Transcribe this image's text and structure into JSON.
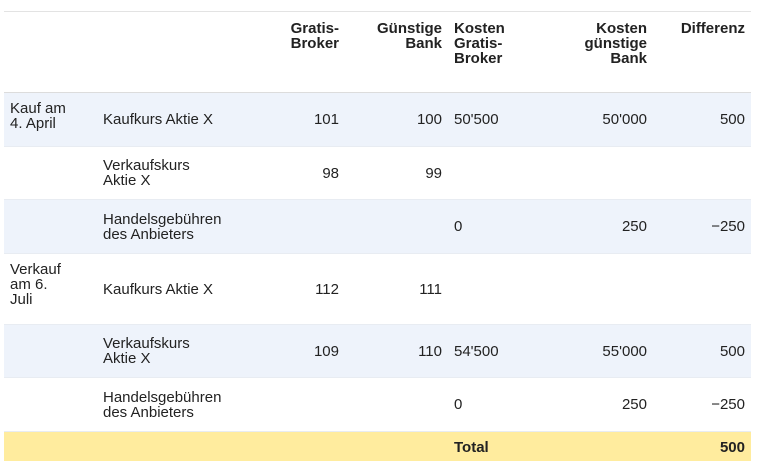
{
  "table": {
    "headers": [
      "",
      "",
      "Gratis-\nBroker",
      "Günstige\nBank",
      "Kosten\nGratis-\nBroker",
      "Kosten\ngünstige\nBank",
      "Differenz"
    ],
    "rows": [
      [
        "Kauf am\n4. April",
        "Kaufkurs Aktie X",
        "101",
        "100",
        "50'500",
        "50'000",
        "500"
      ],
      [
        "",
        "Verkaufskurs\nAktie X",
        "98",
        "99",
        "",
        "",
        ""
      ],
      [
        "",
        "Handelsgebühren\ndes Anbieters",
        "",
        "",
        "0",
        "250",
        "−250"
      ],
      [
        "Verkauf\nam 6.\nJuli",
        "Kaufkurs Aktie X",
        "112",
        "111",
        "",
        "",
        ""
      ],
      [
        "",
        "Verkaufskurs\nAktie X",
        "109",
        "110",
        "54'500",
        "55'000",
        "500"
      ],
      [
        "",
        "Handelsgebühren\ndes Anbieters",
        "",
        "",
        "0",
        "250",
        "−250"
      ]
    ],
    "total": {
      "label": "Total",
      "value": "500"
    }
  },
  "colors": {
    "row_shade": "#eef3fb",
    "total_highlight": "#ffec9e",
    "text": "#222222"
  }
}
